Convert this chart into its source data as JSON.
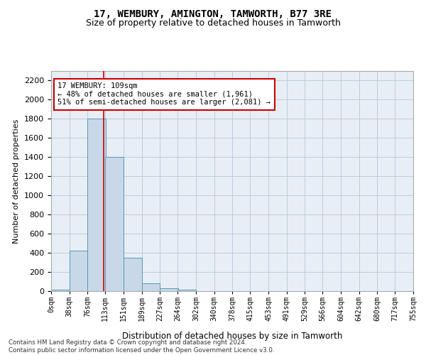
{
  "title": "17, WEMBURY, AMINGTON, TAMWORTH, B77 3RE",
  "subtitle": "Size of property relative to detached houses in Tamworth",
  "xlabel": "Distribution of detached houses by size in Tamworth",
  "ylabel": "Number of detached properties",
  "bar_color": "#c8d8e8",
  "bar_edge_color": "#5599bb",
  "grid_color": "#bbccdd",
  "bg_color": "#e8eef5",
  "marker_line_color": "#cc0000",
  "marker_value": 109,
  "annotation_text": "17 WEMBURY: 109sqm\n← 48% of detached houses are smaller (1,961)\n51% of semi-detached houses are larger (2,081) →",
  "annotation_box_color": "#ffffff",
  "annotation_box_edge": "#cc0000",
  "bins": [
    0,
    38,
    76,
    113,
    151,
    189,
    227,
    264,
    302,
    340,
    378,
    415,
    453,
    491,
    529,
    566,
    604,
    642,
    680,
    717,
    755
  ],
  "bin_labels": [
    "0sqm",
    "38sqm",
    "76sqm",
    "113sqm",
    "151sqm",
    "189sqm",
    "227sqm",
    "264sqm",
    "302sqm",
    "340sqm",
    "378sqm",
    "415sqm",
    "453sqm",
    "491sqm",
    "529sqm",
    "566sqm",
    "604sqm",
    "642sqm",
    "680sqm",
    "717sqm",
    "755sqm"
  ],
  "bar_heights": [
    15,
    420,
    1800,
    1400,
    350,
    80,
    30,
    15,
    0,
    0,
    0,
    0,
    0,
    0,
    0,
    0,
    0,
    0,
    0,
    0
  ],
  "ylim": [
    0,
    2300
  ],
  "yticks": [
    0,
    200,
    400,
    600,
    800,
    1000,
    1200,
    1400,
    1600,
    1800,
    2000,
    2200
  ],
  "footer_text": "Contains HM Land Registry data © Crown copyright and database right 2024.\nContains public sector information licensed under the Open Government Licence v3.0."
}
